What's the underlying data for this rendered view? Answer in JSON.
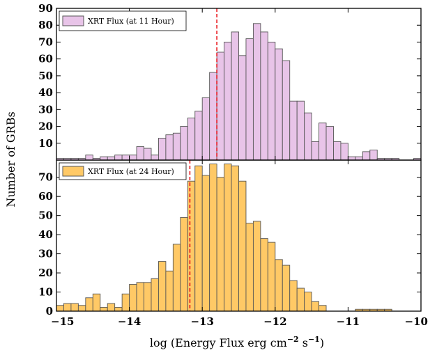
{
  "figure": {
    "xlabel": "log (Energy Flux erg  cm",
    "xlabel_sup1": "−2",
    "xlabel_mid": " s",
    "xlabel_sup2": "−1",
    "xlabel_end": ")",
    "ylabel": "Number of GRBs"
  },
  "chart_data": [
    {
      "type": "bar",
      "panel": "top",
      "legend": "XRT Flux (at 11 Hour)",
      "legend_position": "top-left",
      "fill_color": "#e8c4e8",
      "edge_color": "#555555",
      "bin_width": 0.1,
      "bin_starts": [
        -15.0,
        -14.9,
        -14.8,
        -14.7,
        -14.6,
        -14.5,
        -14.4,
        -14.3,
        -14.2,
        -14.1,
        -14.0,
        -13.9,
        -13.8,
        -13.7,
        -13.6,
        -13.5,
        -13.4,
        -13.3,
        -13.2,
        -13.1,
        -13.0,
        -12.9,
        -12.8,
        -12.7,
        -12.6,
        -12.5,
        -12.4,
        -12.3,
        -12.2,
        -12.1,
        -12.0,
        -11.9,
        -11.8,
        -11.7,
        -11.6,
        -11.5,
        -11.4,
        -11.3,
        -11.2,
        -11.1,
        -11.0,
        -10.9,
        -10.8,
        -10.7,
        -10.6,
        -10.5,
        -10.4,
        -10.3,
        -10.2,
        -10.1
      ],
      "values": [
        1,
        1,
        1,
        1,
        3,
        1,
        2,
        2,
        3,
        3,
        3,
        8,
        7,
        3,
        13,
        15,
        16,
        20,
        25,
        29,
        37,
        52,
        64,
        70,
        76,
        62,
        72,
        81,
        76,
        70,
        66,
        59,
        35,
        35,
        28,
        11,
        22,
        20,
        11,
        10,
        2,
        2,
        5,
        6,
        1,
        1,
        1,
        0,
        0,
        1
      ],
      "vline": -12.8,
      "vline_color": "#e8151b",
      "yticks": [
        10,
        20,
        30,
        40,
        50,
        60,
        70,
        80,
        90
      ],
      "ylim": [
        0,
        90
      ],
      "xlim": [
        -15,
        -10
      ]
    },
    {
      "type": "bar",
      "panel": "bottom",
      "legend": "XRT Flux (at 24 Hour)",
      "legend_position": "top-left",
      "fill_color": "#ffc966",
      "edge_color": "#555555",
      "bin_width": 0.1,
      "bin_starts": [
        -15.0,
        -14.9,
        -14.8,
        -14.7,
        -14.6,
        -14.5,
        -14.4,
        -14.3,
        -14.2,
        -14.1,
        -14.0,
        -13.9,
        -13.8,
        -13.7,
        -13.6,
        -13.5,
        -13.4,
        -13.3,
        -13.2,
        -13.1,
        -13.0,
        -12.9,
        -12.8,
        -12.7,
        -12.6,
        -12.5,
        -12.4,
        -12.3,
        -12.2,
        -12.1,
        -12.0,
        -11.9,
        -11.8,
        -11.7,
        -11.6,
        -11.5,
        -11.4,
        -11.3,
        -11.2,
        -11.1,
        -11.0,
        -10.9,
        -10.8,
        -10.7,
        -10.6,
        -10.5,
        -10.4
      ],
      "values": [
        3,
        4,
        4,
        3,
        7,
        9,
        2,
        4,
        2,
        9,
        14,
        15,
        15,
        17,
        26,
        21,
        35,
        49,
        68,
        76,
        71,
        77,
        70,
        77,
        76,
        68,
        46,
        47,
        38,
        36,
        27,
        24,
        16,
        12,
        10,
        5,
        3,
        0,
        0,
        0,
        0,
        1,
        1,
        1,
        1,
        1,
        0
      ],
      "vline": -13.17,
      "vline_color": "#e8151b",
      "yticks": [
        0,
        10,
        20,
        30,
        40,
        50,
        60,
        70
      ],
      "ylim": [
        0,
        79
      ],
      "xticks": [
        -15,
        -14,
        -13,
        -12,
        -11,
        -10
      ],
      "xtick_labels": [
        "−15",
        "−14",
        "−13",
        "−12",
        "−11",
        "−10"
      ],
      "xlim": [
        -15,
        -10
      ]
    }
  ]
}
